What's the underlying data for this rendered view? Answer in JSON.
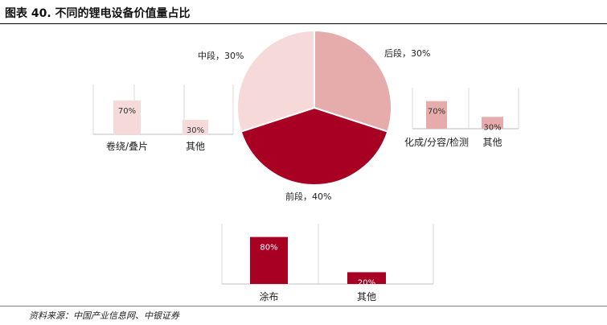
{
  "title": "图表 40. 不同的锂电设备价值量占比",
  "source": "资料来源：中国产业信息网、中银证券",
  "chart_data": [
    {
      "type": "pie",
      "categories": [
        "后段",
        "前段",
        "中段"
      ],
      "values": [
        30,
        40,
        30
      ],
      "labels": [
        "后段，30%",
        "前段，40%",
        "中段，30%"
      ],
      "colors": [
        "#E6ABAB",
        "#A70022",
        "#F6DADA"
      ]
    },
    {
      "type": "bar",
      "categories": [
        "卷绕/叠片",
        "其他"
      ],
      "values": [
        70,
        30
      ],
      "labels": [
        "70%",
        "30%"
      ],
      "colors": [
        "#F6DADA",
        "#F6DADA"
      ],
      "ylim": [
        0,
        100
      ],
      "grid": true
    },
    {
      "type": "bar",
      "categories": [
        "化成/分容/检测",
        "其他"
      ],
      "values": [
        70,
        30
      ],
      "labels": [
        "70%",
        "30%"
      ],
      "colors": [
        "#E6ABAB",
        "#E6ABAB"
      ],
      "ylim": [
        0,
        100
      ],
      "grid": true
    },
    {
      "type": "bar",
      "categories": [
        "涂布",
        "其他"
      ],
      "values": [
        80,
        20
      ],
      "labels": [
        "80%",
        "20%"
      ],
      "colors": [
        "#A70022",
        "#A70022"
      ],
      "ylim": [
        0,
        100
      ],
      "grid": true
    }
  ]
}
